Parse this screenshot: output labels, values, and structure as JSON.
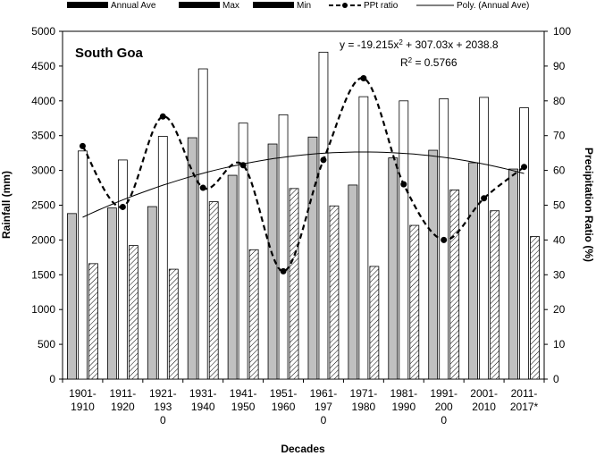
{
  "chart_data": {
    "type": "bar",
    "title": "South Goa",
    "categories": [
      [
        "1901-",
        "1910"
      ],
      [
        "1911-",
        "1920"
      ],
      [
        "1921-",
        "193",
        "0"
      ],
      [
        "1931-",
        "1940"
      ],
      [
        "1941-",
        "1950"
      ],
      [
        "1951-",
        "1960"
      ],
      [
        "1961-",
        "197",
        "0"
      ],
      [
        "1971-",
        "1980"
      ],
      [
        "1981-",
        "1990"
      ],
      [
        "1991-",
        "200",
        "0"
      ],
      [
        "2001-",
        "2010"
      ],
      [
        "2011-",
        "2017*"
      ]
    ],
    "series": [
      {
        "name": "Annual Ave",
        "kind": "bar",
        "fill": "#c0c0c0",
        "values": [
          2380,
          2460,
          2480,
          3470,
          2930,
          3380,
          3480,
          2790,
          3180,
          3290,
          3110,
          3020
        ]
      },
      {
        "name": "Max",
        "kind": "bar",
        "fill": "#ffffff",
        "values": [
          3280,
          3150,
          3490,
          4460,
          3680,
          3800,
          4700,
          4060,
          4000,
          4030,
          4050,
          3900
        ]
      },
      {
        "name": "Min",
        "kind": "bar",
        "fill": "hatch",
        "values": [
          1660,
          1920,
          1580,
          2550,
          1860,
          2740,
          2490,
          1620,
          2210,
          2720,
          2420,
          2050
        ]
      },
      {
        "name": "PPt ratio",
        "kind": "line",
        "axis": "right",
        "values": [
          67,
          49.5,
          75.5,
          55,
          61.5,
          31,
          63,
          86.5,
          56,
          40,
          52,
          61
        ]
      },
      {
        "name": "Poly. (Annual Ave)",
        "kind": "trend",
        "coefficients": [
          -19.215,
          307.03,
          2038.8
        ]
      }
    ],
    "xlabel": "Decades",
    "ylabel": "Rainfall  (mm)",
    "ylabel_right": "Precipitation  Ratio  (%)",
    "ylim": [
      0,
      5000
    ],
    "ylim_right": [
      0,
      100
    ],
    "yticks": [
      "0",
      "500",
      "1000",
      "1500",
      "2000",
      "2500",
      "3000",
      "3500",
      "4000",
      "4500",
      "5000"
    ],
    "yticks_right": [
      "0",
      "10",
      "20",
      "30",
      "40",
      "50",
      "60",
      "70",
      "80",
      "90",
      "100"
    ],
    "equation_lines": [
      "y = -19.215x",
      " + 307.03x + 2038.8",
      "R",
      " = 0.5766"
    ],
    "grid": false,
    "legend_position": "top"
  }
}
